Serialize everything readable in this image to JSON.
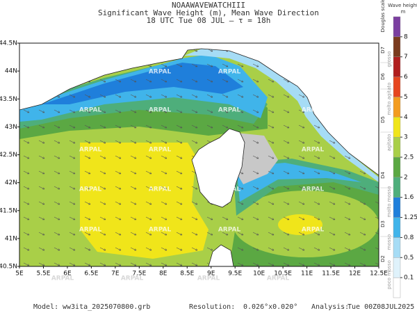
{
  "header": {
    "lines": [
      "NOAAWAVEWATCHIII",
      "Significant Wave Height (m), Mean Wave Direction",
      "18 UTC Tue 08 JUL  –  τ = 18h"
    ]
  },
  "map": {
    "lon_range": [
      5,
      12.5
    ],
    "lat_range": [
      40.5,
      44.5
    ],
    "lon_ticks": [
      {
        "value": 5,
        "label": "5E"
      },
      {
        "value": 5.5,
        "label": "5.5E"
      },
      {
        "value": 6,
        "label": "6E"
      },
      {
        "value": 6.5,
        "label": "6.5E"
      },
      {
        "value": 7,
        "label": "7E"
      },
      {
        "value": 7.5,
        "label": "7.5E"
      },
      {
        "value": 8,
        "label": "8E"
      },
      {
        "value": 8.5,
        "label": "8.5E"
      },
      {
        "value": 9,
        "label": "9E"
      },
      {
        "value": 9.5,
        "label": "9.5E"
      },
      {
        "value": 10,
        "label": "10E"
      },
      {
        "value": 10.5,
        "label": "10.5E"
      },
      {
        "value": 11,
        "label": "11E"
      },
      {
        "value": 11.5,
        "label": "11.5E"
      },
      {
        "value": 12,
        "label": "12E"
      },
      {
        "value": 12.5,
        "label": "12.5E"
      }
    ],
    "lat_ticks": [
      {
        "value": 40.5,
        "label": "40.5N"
      },
      {
        "value": 41,
        "label": "41N"
      },
      {
        "value": 41.5,
        "label": "41.5N"
      },
      {
        "value": 42,
        "label": "42N"
      },
      {
        "value": 42.5,
        "label": "42.5N"
      },
      {
        "value": 43,
        "label": "43N"
      },
      {
        "value": 43.5,
        "label": "43.5N"
      },
      {
        "value": 44,
        "label": "44N"
      },
      {
        "value": 44.5,
        "label": "44.5N"
      }
    ],
    "watermark": "ARPAL"
  },
  "colorbar": {
    "title": "Wave height",
    "unit": "m",
    "levels": [
      0.1,
      0.5,
      0.8,
      1.25,
      1.6,
      2,
      2.5,
      3,
      4,
      5,
      6,
      7,
      8
    ],
    "colors": [
      "#ffffff",
      "#dff2fb",
      "#a6dcf5",
      "#40b4ea",
      "#1f7fdb",
      "#4eae7b",
      "#5ba843",
      "#a9cf48",
      "#f0e51a",
      "#f39c1f",
      "#e6461f",
      "#b01e1e",
      "#7a3b1e",
      "#7b3fa0"
    ]
  },
  "douglas": {
    "title": "Douglas scale",
    "labels": [
      "D2",
      "D3",
      "D4",
      "D5",
      "D6",
      "D7"
    ],
    "descriptions": [
      "poco mosso",
      "mosso",
      "molto mosso",
      "agitato",
      "molto agitato",
      "grosso"
    ]
  },
  "footer": {
    "model_label": "Model:",
    "model": "ww3ita_2025070800.grb",
    "resolution_label": "Resolution:",
    "resolution": "0.026°x0.020°",
    "analysis_label": "Analysis:",
    "analysis": "Tue 00Z08JUL2025"
  }
}
